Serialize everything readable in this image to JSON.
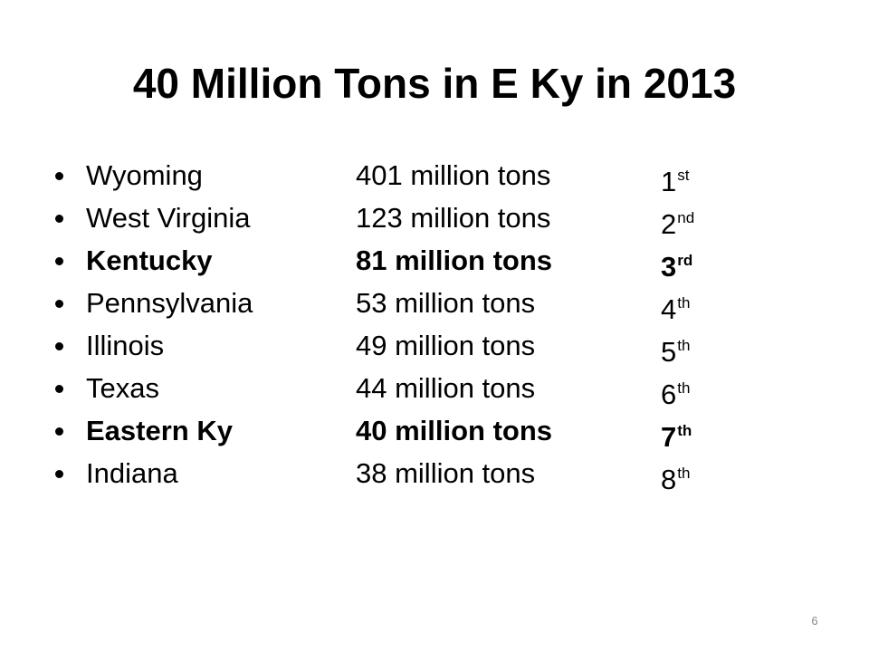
{
  "slide": {
    "title": "40 Million Tons in E Ky in 2013",
    "rows": [
      {
        "state": "Wyoming",
        "amount": "401 million tons",
        "rank": "1",
        "suffix": "st",
        "bold": false
      },
      {
        "state": "West Virginia",
        "amount": "123 million tons",
        "rank": "2",
        "suffix": "nd",
        "bold": false
      },
      {
        "state": "Kentucky",
        "amount": "81 million tons",
        "rank": "3",
        "suffix": "rd",
        "bold": true
      },
      {
        "state": "Pennsylvania",
        "amount": "53 million tons",
        "rank": "4",
        "suffix": "th",
        "bold": false
      },
      {
        "state": "Illinois",
        "amount": "49 million tons",
        "rank": "5",
        "suffix": "th",
        "bold": false
      },
      {
        "state": "Texas",
        "amount": "44 million tons",
        "rank": "6",
        "suffix": "th",
        "bold": false
      },
      {
        "state": "Eastern Ky",
        "amount": "40 million tons",
        "rank": "7",
        "suffix": "th",
        "bold": true
      },
      {
        "state": "Indiana",
        "amount": "38 million tons",
        "rank": "8",
        "suffix": "th",
        "bold": false
      }
    ],
    "page_number": "6"
  }
}
